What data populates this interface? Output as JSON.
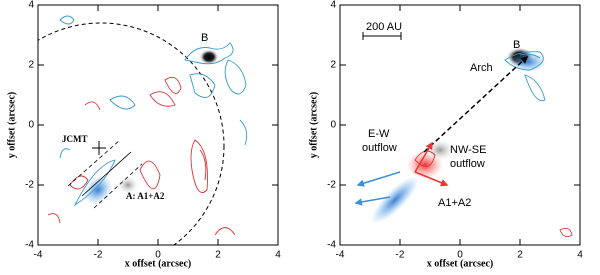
{
  "chart_data": [
    {
      "type": "contour",
      "xlabel": "x offset (arcsec)",
      "ylabel": "y offset (arcsec)",
      "xlim": [
        -4,
        4
      ],
      "ylim": [
        -4,
        4
      ],
      "xticks": [
        -4,
        -2,
        0,
        2,
        4
      ],
      "yticks": [
        -4,
        -2,
        0,
        2,
        4
      ],
      "annotations": [
        "B",
        "JCMT",
        "A: A1+A2"
      ]
    },
    {
      "type": "contour",
      "xlabel": "x offset (arcsec)",
      "ylabel": "y offset (arcsec)",
      "xlim": [
        -4,
        4
      ],
      "ylim": [
        -4,
        4
      ],
      "xticks": [
        -4,
        -2,
        0,
        2,
        4
      ],
      "yticks": [
        -4,
        -2,
        0,
        2,
        4
      ],
      "annotations": [
        "200 AU",
        "B",
        "Arch",
        "E-W",
        "outflow",
        "NW-SE",
        "outflow",
        "A1+A2"
      ]
    }
  ]
}
